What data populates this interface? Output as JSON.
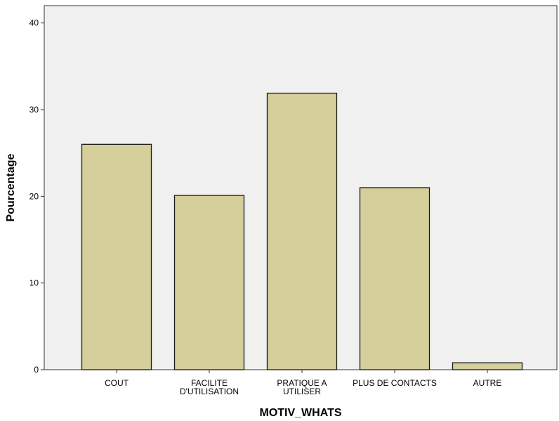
{
  "chart_data": {
    "type": "bar",
    "title": "",
    "xlabel": "MOTIV_WHATS",
    "ylabel": "Pourcentage",
    "categories": [
      [
        "COUT"
      ],
      [
        "FACILITE",
        "D'UTILISATION"
      ],
      [
        "PRATIQUE A",
        "UTILISER"
      ],
      [
        "PLUS DE CONTACTS"
      ],
      [
        "AUTRE"
      ]
    ],
    "values": [
      26,
      20.1,
      31.9,
      21,
      0.8
    ],
    "yticks": [
      0,
      10,
      20,
      30,
      40
    ],
    "ylim": [
      0,
      42
    ],
    "grid": false,
    "legend": "none",
    "colors": {
      "bar_fill": "#d4cf9b",
      "bar_stroke": "#1a1a1a",
      "plot_background": "#f0f0f0",
      "axis": "#333333"
    }
  }
}
